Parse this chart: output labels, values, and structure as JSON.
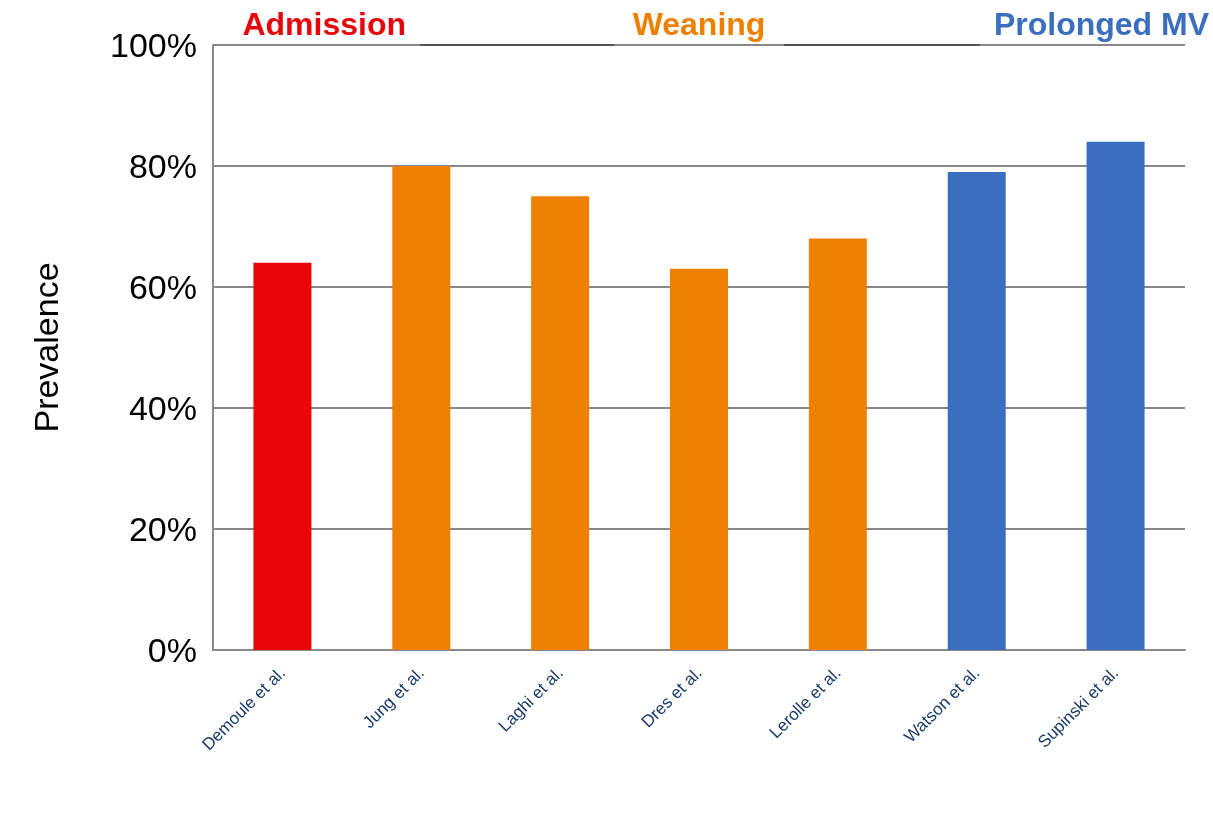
{
  "chart_data": {
    "type": "bar",
    "ylabel": "Prevalence",
    "categories": [
      "Demoule et al.",
      "Jung et al.",
      "Laghi et al.",
      "Dres et al.",
      "Lerolle et al.",
      "Watson et al.",
      "Supinski et al."
    ],
    "values": [
      64,
      80,
      75,
      63,
      68,
      79,
      84
    ],
    "colors": [
      "#e8060b",
      "#ee8000",
      "#ee8000",
      "#ee8000",
      "#ee8000",
      "#3a6fc0",
      "#3a6fc0"
    ],
    "ylim": [
      0,
      100
    ],
    "yticks": [
      {
        "value": 0,
        "label": "0%"
      },
      {
        "value": 20,
        "label": "20%"
      },
      {
        "value": 40,
        "label": "40%"
      },
      {
        "value": 60,
        "label": "60%"
      },
      {
        "value": 80,
        "label": "80%"
      },
      {
        "value": 100,
        "label": "100%"
      }
    ],
    "grid": "y",
    "annotations": [
      "Admission",
      "Weaning",
      "Prolonged MV"
    ]
  }
}
